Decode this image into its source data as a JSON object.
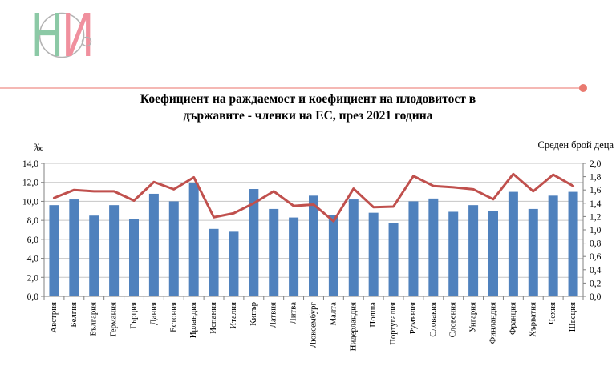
{
  "header": {
    "logo": {
      "name": "НСИ лого",
      "letter_n": "Н",
      "letter_i": "И",
      "green": "#8cc9a6",
      "red": "#f0909e",
      "ring_gray": "#b3b3b3"
    },
    "separator": {
      "line_color": "#f2a19c",
      "dot_color": "#e97a70"
    }
  },
  "title": {
    "line1": "Коефициент на раждаемост и коефициент на плодовитост в",
    "line2": "държавите - членки на ЕС, през 2021 година"
  },
  "chart_data": {
    "type": "combo-bar-line",
    "title": "Коефициент на раждаемост и коефициент на плодовитост в държавите - членки на ЕС, през 2021 година",
    "legend_position": "none",
    "grid": {
      "horizontal": true,
      "color": "#c6c6c6"
    },
    "axis_color": "#808080",
    "categories": [
      "Австрия",
      "Белгия",
      "България",
      "Германия",
      "Гърция",
      "Дания",
      "Естония",
      "Ирландия",
      "Испания",
      "Италия",
      "Кипър",
      "Латвия",
      "Литва",
      "Люксембург",
      "Малта",
      "Нидерландия",
      "Полша",
      "Португалия",
      "Румъния",
      "Словакия",
      "Словения",
      "Унгария",
      "Финландия",
      "Франция",
      "Хърватия",
      "Чехия",
      "Швеция"
    ],
    "series": [
      {
        "name": "Коефициент на раждаемост",
        "type": "bar",
        "axis": "left",
        "unit": "‰",
        "color": "#4f81bd",
        "values": [
          9.6,
          10.2,
          8.5,
          9.6,
          8.1,
          10.8,
          10.0,
          11.9,
          7.1,
          6.8,
          11.3,
          9.2,
          8.3,
          10.6,
          8.6,
          10.2,
          8.8,
          7.7,
          10.0,
          10.3,
          8.9,
          9.6,
          9.0,
          11.0,
          9.2,
          10.6,
          11.0
        ]
      },
      {
        "name": "Коефициент на плодовитост",
        "type": "line",
        "axis": "right",
        "unit": "среден брой деца",
        "color": "#c0504d",
        "values": [
          1.48,
          1.6,
          1.58,
          1.58,
          1.44,
          1.72,
          1.61,
          1.79,
          1.19,
          1.25,
          1.4,
          1.58,
          1.36,
          1.38,
          1.13,
          1.62,
          1.34,
          1.35,
          1.81,
          1.66,
          1.64,
          1.61,
          1.46,
          1.84,
          1.58,
          1.83,
          1.66
        ]
      }
    ],
    "left_axis": {
      "title": "‰",
      "min": 0,
      "max": 14,
      "step": 2,
      "tick_labels_top_to_bottom": [
        "14,0",
        "12,0",
        "10,0",
        "8,0",
        "6,0",
        "4,0",
        "2,0",
        "0,0"
      ]
    },
    "right_axis": {
      "title": "Среден брой деца",
      "min": 0,
      "max": 2,
      "step": 0.2,
      "tick_labels_top_to_bottom": [
        "2,0",
        "1,8",
        "1,6",
        "1,4",
        "1,2",
        "1,0",
        "0,8",
        "0,6",
        "0,4",
        "0,2",
        "0,0"
      ]
    }
  }
}
